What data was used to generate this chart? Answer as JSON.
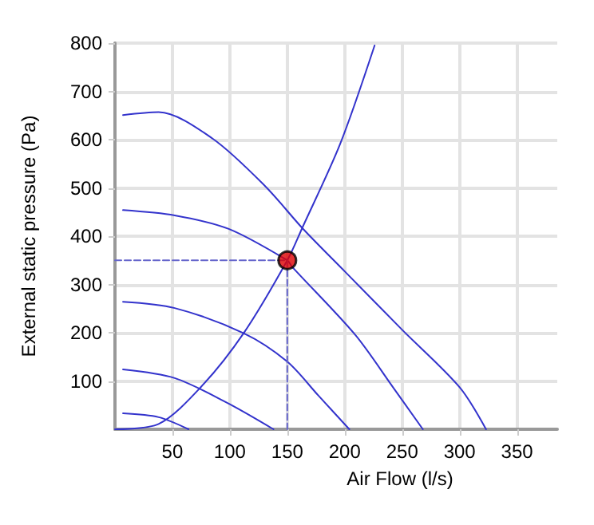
{
  "chart_data": {
    "type": "line",
    "xlabel": "Air Flow (l/s)",
    "ylabel": "External static pressure (Pa)",
    "xlim": [
      0,
      385
    ],
    "ylim": [
      0,
      800
    ],
    "xticks": [
      50,
      100,
      150,
      200,
      250,
      300,
      350
    ],
    "yticks": [
      100,
      200,
      300,
      400,
      500,
      600,
      700,
      800
    ],
    "grid": true,
    "marker": "none",
    "line_style": "solid",
    "series": [
      {
        "color": "#3333cc",
        "x": [
          7,
          38,
          85,
          131,
          163,
          200,
          250,
          300,
          323
        ],
        "values": [
          651,
          657,
          602,
          503,
          417,
          327,
          206,
          87,
          0
        ]
      },
      {
        "color": "#3333cc",
        "x": [
          7,
          52,
          99,
          150,
          154,
          209,
          242,
          268
        ],
        "values": [
          454,
          443,
          415,
          350,
          337,
          196,
          87,
          0
        ]
      },
      {
        "color": "#3333cc",
        "x": [
          7,
          52,
          112,
          150,
          177,
          204
        ],
        "values": [
          264,
          251,
          199,
          140,
          70,
          0
        ]
      },
      {
        "color": "#3333cc",
        "x": [
          7,
          52,
          99,
          138
        ],
        "values": [
          124,
          106,
          53,
          0
        ]
      },
      {
        "color": "#3333cc",
        "x": [
          7,
          38,
          64
        ],
        "values": [
          33,
          25,
          0
        ]
      },
      {
        "color": "#3333cc",
        "x": [
          0,
          38,
          75,
          112,
          150,
          163,
          196,
          226
        ],
        "values": [
          0,
          11,
          88,
          199,
          350,
          417,
          591,
          795
        ]
      },
      {
        "color": "#6666cc",
        "line_style": "dashed",
        "x": [
          0,
          150,
          150
        ],
        "values": [
          350,
          350,
          0
        ]
      },
      {
        "type": "scatter",
        "marker": "circle",
        "color": "#dd0000",
        "x": [
          150
        ],
        "values": [
          350
        ]
      }
    ]
  }
}
